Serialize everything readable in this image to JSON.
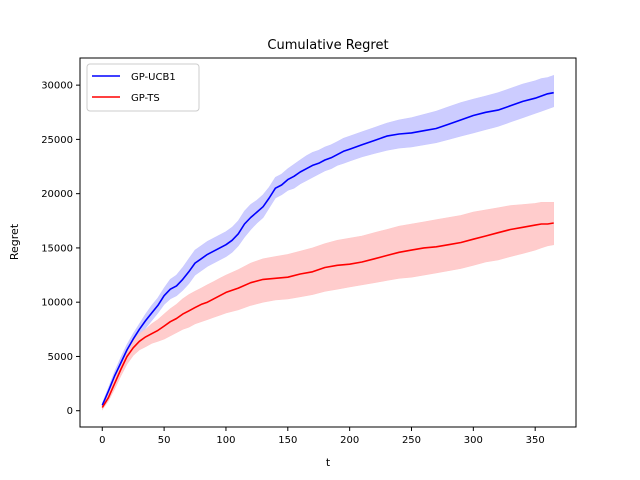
{
  "chart_data": {
    "type": "line",
    "title": "Cumulative Regret",
    "xlabel": "t",
    "ylabel": "Regret",
    "xlim": [
      -18,
      383
    ],
    "ylim": [
      -1500,
      32500
    ],
    "xticks": [
      0,
      50,
      100,
      150,
      200,
      250,
      300,
      350
    ],
    "yticks": [
      0,
      5000,
      10000,
      15000,
      20000,
      25000,
      30000
    ],
    "grid": false,
    "legend_position": "top-left",
    "series": [
      {
        "name": "GP-UCB1",
        "color": "#0000ff",
        "band_color": "#c9c9ff",
        "x": [
          0,
          5,
          10,
          15,
          20,
          25,
          30,
          35,
          40,
          45,
          50,
          55,
          60,
          65,
          70,
          75,
          80,
          85,
          90,
          95,
          100,
          105,
          110,
          115,
          120,
          125,
          130,
          135,
          140,
          145,
          150,
          155,
          160,
          165,
          170,
          175,
          180,
          185,
          190,
          195,
          200,
          210,
          220,
          230,
          240,
          250,
          260,
          270,
          280,
          290,
          300,
          310,
          320,
          330,
          340,
          350,
          355,
          360,
          365
        ],
        "mean": [
          500,
          1800,
          3200,
          4400,
          5600,
          6600,
          7500,
          8300,
          9000,
          9700,
          10600,
          11200,
          11500,
          12100,
          12800,
          13600,
          14000,
          14400,
          14700,
          15000,
          15300,
          15700,
          16300,
          17200,
          17800,
          18300,
          18800,
          19600,
          20500,
          20800,
          21300,
          21600,
          22000,
          22300,
          22600,
          22800,
          23100,
          23300,
          23600,
          23900,
          24100,
          24500,
          24900,
          25300,
          25500,
          25600,
          25800,
          26000,
          26400,
          26800,
          27200,
          27500,
          27700,
          28100,
          28500,
          28800,
          29000,
          29200,
          29300
        ],
        "lower": [
          300,
          1500,
          2700,
          3900,
          5000,
          6100,
          6900,
          7600,
          8300,
          9000,
          9800,
          10300,
          10600,
          11100,
          11700,
          12500,
          12900,
          13300,
          13600,
          13900,
          14200,
          14600,
          15200,
          16000,
          16700,
          17300,
          17800,
          18700,
          19600,
          19900,
          20300,
          20500,
          20900,
          21200,
          21500,
          21800,
          22100,
          22300,
          22600,
          22800,
          23000,
          23400,
          23700,
          24000,
          24200,
          24300,
          24500,
          24700,
          25000,
          25300,
          25600,
          25900,
          26200,
          26600,
          27000,
          27400,
          27600,
          27800,
          28000
        ],
        "upper": [
          700,
          2100,
          3600,
          4900,
          6100,
          7100,
          8000,
          8900,
          9700,
          10400,
          11300,
          12100,
          12500,
          13200,
          14000,
          14800,
          15200,
          15600,
          15900,
          16200,
          16500,
          16900,
          17500,
          18400,
          19000,
          19400,
          19900,
          20600,
          21500,
          21800,
          22300,
          22700,
          23100,
          23500,
          23800,
          24000,
          24300,
          24500,
          24800,
          25100,
          25300,
          25700,
          26100,
          26500,
          26800,
          27000,
          27300,
          27600,
          28000,
          28400,
          28700,
          29000,
          29300,
          29700,
          30100,
          30400,
          30600,
          30700,
          30900
        ]
      },
      {
        "name": "GP-TS",
        "color": "#ff0000",
        "band_color": "#ffc9c9",
        "x": [
          0,
          5,
          10,
          15,
          20,
          25,
          30,
          35,
          40,
          45,
          50,
          55,
          60,
          65,
          70,
          75,
          80,
          85,
          90,
          95,
          100,
          110,
          120,
          130,
          140,
          150,
          160,
          170,
          180,
          190,
          200,
          210,
          220,
          230,
          240,
          250,
          260,
          270,
          280,
          290,
          300,
          310,
          320,
          330,
          340,
          350,
          355,
          360,
          365
        ],
        "mean": [
          300,
          1200,
          2500,
          3800,
          5000,
          5800,
          6400,
          6800,
          7100,
          7400,
          7800,
          8200,
          8500,
          8900,
          9200,
          9500,
          9800,
          10000,
          10300,
          10600,
          10900,
          11300,
          11800,
          12100,
          12200,
          12300,
          12600,
          12800,
          13200,
          13400,
          13500,
          13700,
          14000,
          14300,
          14600,
          14800,
          15000,
          15100,
          15300,
          15500,
          15800,
          16100,
          16400,
          16700,
          16900,
          17100,
          17200,
          17200,
          17300
        ],
        "lower": [
          100,
          900,
          2000,
          3200,
          4300,
          5100,
          5600,
          5900,
          6200,
          6400,
          6600,
          6900,
          7200,
          7500,
          7700,
          8000,
          8200,
          8400,
          8600,
          8800,
          9000,
          9300,
          9700,
          10000,
          10200,
          10300,
          10500,
          10700,
          11000,
          11200,
          11400,
          11600,
          11800,
          12000,
          12200,
          12300,
          12500,
          12700,
          12900,
          13100,
          13400,
          13700,
          13900,
          14200,
          14500,
          14800,
          15000,
          15200,
          15300
        ],
        "upper": [
          600,
          1600,
          3000,
          4400,
          5700,
          6500,
          7100,
          7500,
          8000,
          8400,
          8900,
          9400,
          9800,
          10300,
          10700,
          11000,
          11300,
          11600,
          11900,
          12200,
          12500,
          13000,
          13600,
          14000,
          14200,
          14400,
          14700,
          15000,
          15400,
          15700,
          15900,
          16100,
          16400,
          16700,
          17000,
          17200,
          17400,
          17600,
          17800,
          18000,
          18300,
          18500,
          18700,
          18900,
          19000,
          19100,
          19200,
          19200,
          19200
        ]
      }
    ]
  }
}
